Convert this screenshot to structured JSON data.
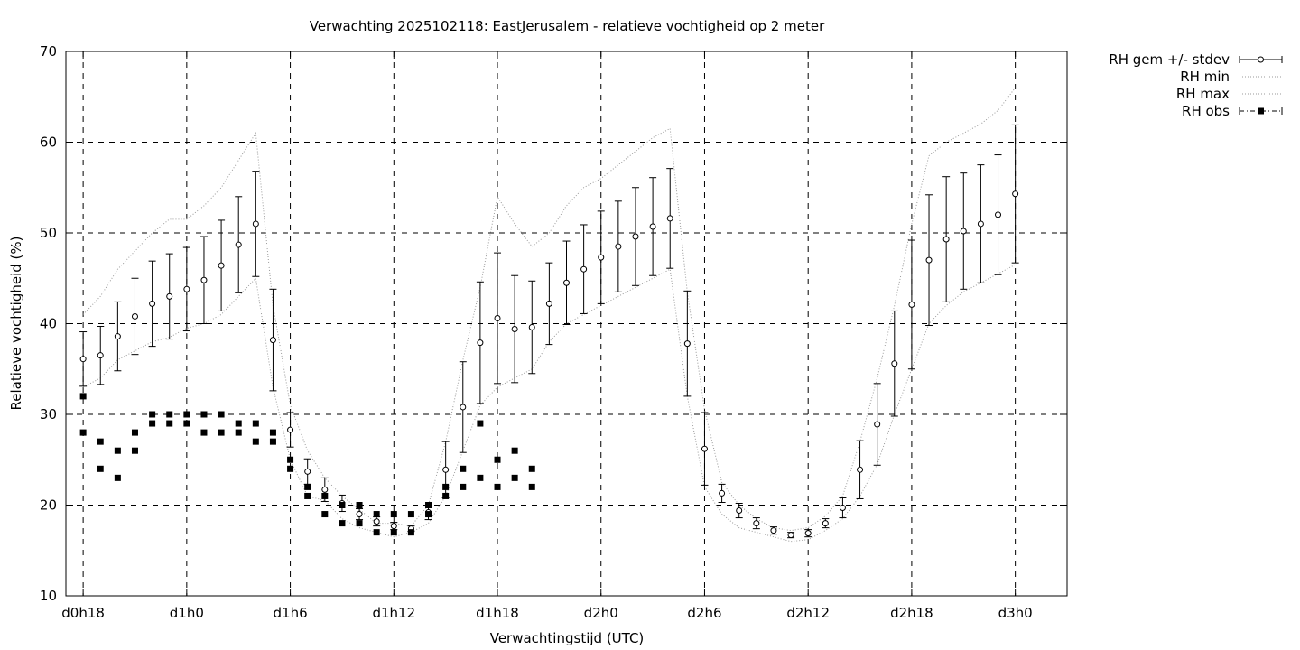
{
  "chart_data": {
    "type": "scatter",
    "title": "Verwachting 2025102118: EastJerusalem - relatieve vochtigheid op 2 meter",
    "xlabel": "Verwachtingstijd (UTC)",
    "ylabel": "Relatieve vochtigheid (%)",
    "xlim": [
      17,
      75
    ],
    "ylim": [
      10,
      70
    ],
    "yticks": [
      10,
      20,
      30,
      40,
      50,
      60,
      70
    ],
    "xticks": [
      {
        "x": 18,
        "label": "d0h18"
      },
      {
        "x": 24,
        "label": "d1h0"
      },
      {
        "x": 30,
        "label": "d1h6"
      },
      {
        "x": 36,
        "label": "d1h12"
      },
      {
        "x": 42,
        "label": "d1h18"
      },
      {
        "x": 48,
        "label": "d2h0"
      },
      {
        "x": 54,
        "label": "d2h6"
      },
      {
        "x": 60,
        "label": "d2h12"
      },
      {
        "x": 66,
        "label": "d2h18"
      },
      {
        "x": 72,
        "label": "d3h0"
      }
    ],
    "grid": true,
    "legend_position": "outside-top-right",
    "legend": [
      {
        "label": "RH gem +/- stdev",
        "style": "errorbar"
      },
      {
        "label": "RH min",
        "style": "dotted"
      },
      {
        "label": "RH max",
        "style": "dotted"
      },
      {
        "label": "RH obs",
        "style": "points-dashdot"
      }
    ],
    "series": [
      {
        "name": "RH gem +/- stdev",
        "x": [
          18,
          19,
          20,
          21,
          22,
          23,
          24,
          25,
          26,
          27,
          28,
          29,
          30,
          31,
          32,
          33,
          34,
          35,
          36,
          37,
          38,
          39,
          40,
          41,
          42,
          43,
          44,
          45,
          46,
          47,
          48,
          49,
          50,
          51,
          52,
          53,
          54,
          55,
          56,
          57,
          58,
          59,
          60,
          61,
          62,
          63,
          64,
          65,
          66,
          67,
          68,
          69,
          70,
          71,
          72
        ],
        "y": [
          36.1,
          36.5,
          38.6,
          40.8,
          42.2,
          43.0,
          43.8,
          44.8,
          46.4,
          48.7,
          51.0,
          38.2,
          28.3,
          23.7,
          21.7,
          20.2,
          19.0,
          18.2,
          17.7,
          17.4,
          19.2,
          23.9,
          30.8,
          37.9,
          40.6,
          39.4,
          39.6,
          42.2,
          44.5,
          46.0,
          47.3,
          48.5,
          49.6,
          50.7,
          51.6,
          37.8,
          26.2,
          21.3,
          19.4,
          18.0,
          17.2,
          16.7,
          16.9,
          18.0,
          19.7,
          23.9,
          28.9,
          35.6,
          42.1,
          47.0,
          49.3,
          50.2,
          51.0,
          52.0,
          54.3
        ],
        "stdev": [
          3.0,
          3.2,
          3.8,
          4.2,
          4.7,
          4.7,
          4.6,
          4.8,
          5.0,
          5.3,
          5.8,
          5.6,
          1.9,
          1.4,
          1.3,
          0.9,
          0.6,
          0.5,
          0.4,
          0.3,
          0.8,
          3.1,
          5.0,
          6.7,
          7.2,
          5.9,
          5.1,
          4.5,
          4.6,
          4.9,
          5.1,
          5.0,
          5.4,
          5.4,
          5.5,
          5.8,
          4.0,
          1.0,
          0.8,
          0.6,
          0.4,
          0.3,
          0.4,
          0.5,
          1.1,
          3.2,
          4.5,
          5.8,
          7.1,
          7.2,
          6.9,
          6.4,
          6.5,
          6.6,
          7.6
        ]
      },
      {
        "name": "RH min",
        "x": [
          18,
          19,
          20,
          21,
          22,
          23,
          24,
          25,
          26,
          27,
          28,
          29,
          30,
          31,
          32,
          33,
          34,
          35,
          36,
          37,
          38,
          39,
          40,
          41,
          42,
          43,
          44,
          45,
          46,
          47,
          48,
          49,
          50,
          51,
          52,
          53,
          54,
          55,
          56,
          57,
          58,
          59,
          60,
          61,
          62,
          63,
          64,
          65,
          66,
          67,
          68,
          69,
          70,
          71,
          72
        ],
        "y": [
          33,
          34,
          36,
          37,
          38,
          38.5,
          39.5,
          40,
          41,
          43,
          45,
          33,
          25,
          21,
          20.5,
          18.5,
          17.5,
          17,
          16.5,
          17,
          18,
          21,
          26,
          31,
          33,
          34,
          35,
          38,
          40,
          41,
          42,
          43,
          44,
          45,
          46,
          32,
          22,
          19,
          17.5,
          17,
          16.5,
          16,
          16.2,
          17.2,
          18.5,
          21,
          24.5,
          30,
          35,
          40,
          42,
          43.5,
          44.5,
          45.5,
          46.5
        ]
      },
      {
        "name": "RH max",
        "x": [
          18,
          19,
          20,
          21,
          22,
          23,
          24,
          25,
          26,
          27,
          28,
          29,
          30,
          31,
          32,
          33,
          34,
          35,
          36,
          37,
          38,
          39,
          40,
          41,
          42,
          43,
          44,
          45,
          46,
          47,
          48,
          49,
          50,
          51,
          52,
          53,
          54,
          55,
          56,
          57,
          58,
          59,
          60,
          61,
          62,
          63,
          64,
          65,
          66,
          67,
          68,
          69,
          70,
          71,
          72
        ],
        "y": [
          41,
          43,
          46,
          48,
          50,
          51.5,
          51.5,
          53,
          55,
          58,
          61,
          42,
          31,
          26,
          23,
          21,
          19.5,
          18,
          18,
          17.7,
          20,
          27,
          36,
          44,
          54,
          51,
          48.5,
          50,
          53,
          55,
          56,
          57.5,
          59,
          60.5,
          61.5,
          43.5,
          30.5,
          22.5,
          20,
          18.5,
          17.5,
          17.2,
          17.5,
          18.8,
          21,
          27,
          34,
          42,
          51,
          58.5,
          60,
          61,
          62,
          63.5,
          66
        ]
      },
      {
        "name": "RH obs",
        "x": [
          18,
          18,
          19,
          19,
          20,
          20,
          21,
          21,
          22,
          22,
          23,
          23,
          24,
          24,
          25,
          25,
          26,
          26,
          27,
          27,
          28,
          28,
          29,
          29,
          30,
          30,
          31,
          31,
          32,
          32,
          33,
          33,
          34,
          34,
          35,
          35,
          36,
          36,
          37,
          37,
          38,
          38,
          39,
          39,
          40,
          40,
          41,
          41,
          42,
          42,
          43,
          43,
          44,
          44
        ],
        "y": [
          32,
          28,
          27,
          24,
          26,
          23,
          28,
          26,
          30,
          29,
          30,
          29,
          30,
          29,
          30,
          28,
          30,
          28,
          29,
          28,
          29,
          27,
          28,
          27,
          25,
          24,
          22,
          21,
          21,
          19,
          20,
          18,
          20,
          18,
          19,
          17,
          19,
          17,
          19,
          17,
          20,
          19,
          22,
          21,
          24,
          22,
          29,
          23,
          25,
          22,
          26,
          23,
          24,
          22
        ]
      }
    ]
  }
}
